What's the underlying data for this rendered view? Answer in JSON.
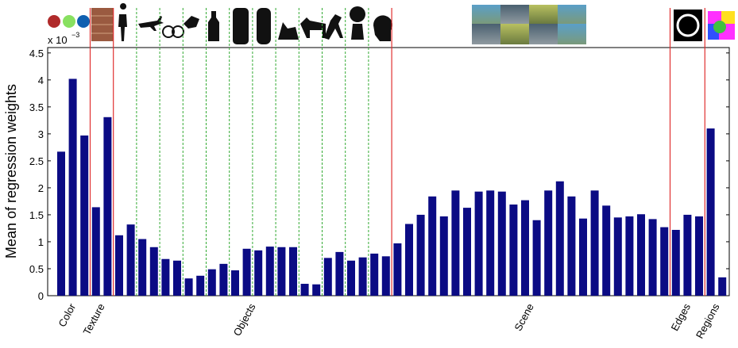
{
  "chart_data": {
    "type": "bar",
    "y_label": "Mean of regression weights",
    "y_multiplier": {
      "base": "x 10",
      "exponent": "−3"
    },
    "ylim": [
      0,
      4.6
    ],
    "yticks": [
      0,
      0.5,
      1,
      1.5,
      2,
      2.5,
      3,
      3.5,
      4,
      4.5
    ],
    "color": "#0b0b84",
    "separator_color": "#e03030",
    "subdivider_color": "#33aa33",
    "groups": [
      {
        "label": "Color",
        "values": [
          2.67,
          4.02,
          2.97
        ]
      },
      {
        "label": "Texture",
        "values": [
          1.64,
          3.31
        ]
      },
      {
        "label": "Objects",
        "values": [
          1.12,
          1.32,
          1.05,
          0.9,
          0.68,
          0.65,
          0.32,
          0.37,
          0.49,
          0.59,
          0.47,
          0.87,
          0.84,
          0.91,
          0.9,
          0.9,
          0.22,
          0.21,
          0.7,
          0.81,
          0.65,
          0.71,
          0.78,
          0.73
        ]
      },
      {
        "label": "Scene",
        "values": [
          0.97,
          1.33,
          1.5,
          1.84,
          1.47,
          1.95,
          1.63,
          1.93,
          1.95,
          1.93,
          1.69,
          1.77,
          1.4,
          1.95,
          2.12,
          1.84,
          1.43,
          1.95,
          1.67,
          1.45,
          1.47,
          1.51,
          1.42,
          1.27
        ]
      },
      {
        "label": "Edges",
        "values": [
          1.22,
          1.5,
          1.47
        ]
      },
      {
        "label": "Regions",
        "values": [
          3.1,
          0.34
        ]
      }
    ]
  }
}
